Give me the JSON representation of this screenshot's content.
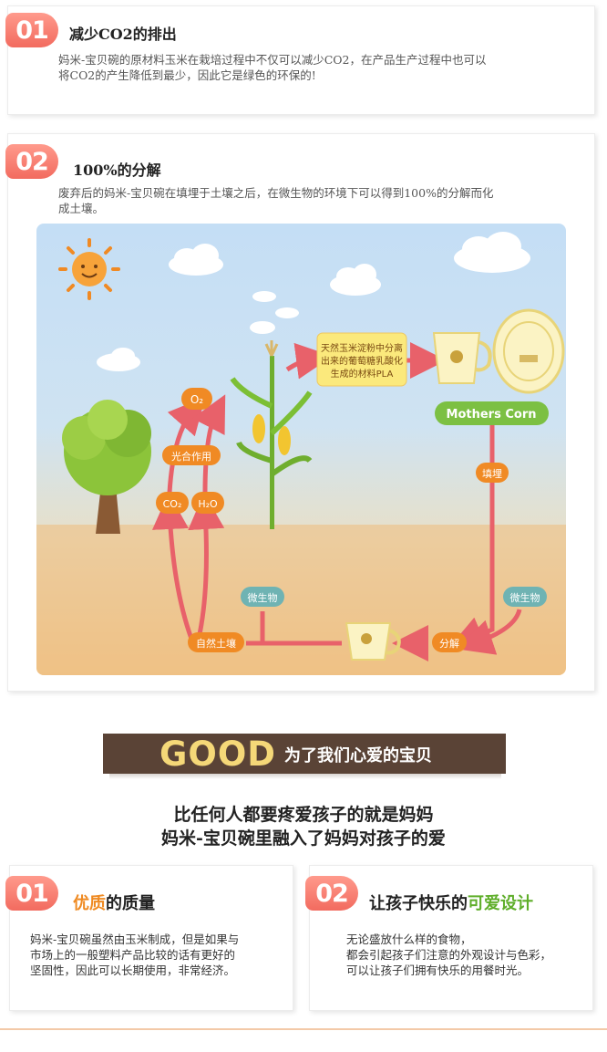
{
  "section1": {
    "number": "01",
    "title": "减少CO2的排出",
    "text_line1": "妈米-宝贝碗的原材料玉米在栽培过程中不仅可以减少CO2，在产品生产过程中也可以",
    "text_line2": "将CO2的产生降低到最少，因此它是绿色的环保的!"
  },
  "section2": {
    "number": "02",
    "title": "100%的分解",
    "text_line1": "废弃后的妈米-宝贝碗在填埋于土壤之后，在微生物的环境下可以得到100%的分解而化",
    "text_line2": "成土壤。"
  },
  "diagram": {
    "o2": "O₂",
    "photosynthesis": "光合作用",
    "co2": "CO₂",
    "h2o": "H₂O",
    "pla_line1": "天然玉米淀粉中分离",
    "pla_line2": "出来的葡萄糖乳酸化",
    "pla_line3": "生成的材料PLA",
    "brand": "Mothers Corn",
    "landfill": "填埋",
    "microbe_left": "微生物",
    "microbe_right": "微生物",
    "natural_soil": "自然土壤",
    "decompose": "分解"
  },
  "good": {
    "word": "GOOD",
    "subtitle": "为了我们心爱的宝贝"
  },
  "slogan": {
    "line1": "比任何人都要疼爱孩子的就是妈妈",
    "line2": "妈米-宝贝碗里融入了妈妈对孩子的爱"
  },
  "feature1": {
    "number": "01",
    "title_hl": "优质",
    "title_rest": "的质量",
    "text_line1": "妈米-宝贝碗虽然由玉米制成，但是如果与",
    "text_line2": "市场上的一般塑料产品比较的话有更好的",
    "text_line3": "坚固性，因此可以长期使用，非常经济。"
  },
  "feature2": {
    "number": "02",
    "title_pre": "让孩子快乐的",
    "title_hl": "可爱设计",
    "text_line1": "无论盛放什么样的食物，",
    "text_line2": "都会引起孩子们注意的外观设计与色彩，",
    "text_line3": "可以让孩子们拥有快乐的用餐时光。"
  },
  "colors": {
    "badge": "#f26b5f",
    "arrow": "#e8616a",
    "orange_label": "#f08a24",
    "teal_label": "#6fb3b3",
    "brand_green": "#7cc043",
    "banner": "#5a4336",
    "good_yellow": "#f5d878"
  }
}
